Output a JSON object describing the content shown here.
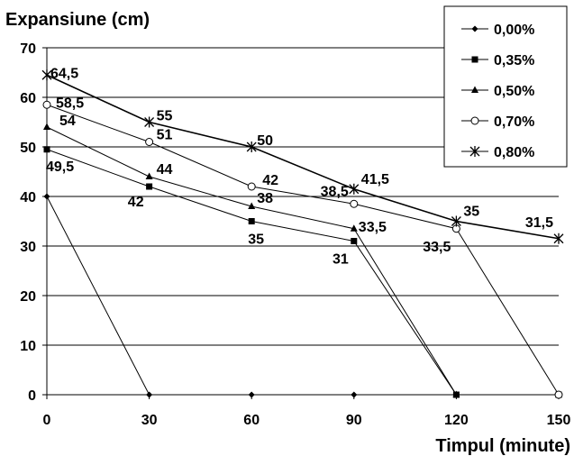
{
  "chart_data": {
    "type": "line",
    "ylabel": "Expansiune  (cm)",
    "xlabel": "Timpul (minute)",
    "x": [
      0,
      30,
      60,
      90,
      120,
      150
    ],
    "xlim": [
      0,
      150
    ],
    "ylim": [
      0,
      70
    ],
    "xticks": [
      "0",
      "30",
      "60",
      "90",
      "120",
      "150"
    ],
    "yticks": [
      "0",
      "10",
      "20",
      "30",
      "40",
      "50",
      "60",
      "70"
    ],
    "grid": "horizontal",
    "legend_position": "top-right",
    "series": [
      {
        "name": "0,00%",
        "marker": "diamond",
        "values": [
          40,
          0,
          0,
          0,
          0,
          0
        ],
        "labels": [
          "",
          "",
          "",
          "",
          "",
          ""
        ]
      },
      {
        "name": "0,35%",
        "marker": "square",
        "values": [
          49.5,
          42,
          35,
          31,
          0,
          0
        ],
        "labels": [
          "49,5",
          "42",
          "35",
          "31",
          "",
          ""
        ]
      },
      {
        "name": "0,50%",
        "marker": "triangle",
        "values": [
          54,
          44,
          38,
          33.5,
          0,
          0
        ],
        "labels": [
          "54",
          "44",
          "38",
          "33,5",
          "",
          ""
        ]
      },
      {
        "name": "0,70%",
        "marker": "circle",
        "values": [
          58.5,
          51,
          42,
          38.5,
          33.5,
          0
        ],
        "labels": [
          "58,5",
          "51",
          "42",
          "38,5",
          "33,5",
          ""
        ]
      },
      {
        "name": "0,80%",
        "marker": "star",
        "values": [
          64.5,
          55,
          50,
          41.5,
          35,
          31.5
        ],
        "labels": [
          "64,5",
          "55",
          "50",
          "41,5",
          "35",
          "31,5"
        ]
      }
    ]
  }
}
